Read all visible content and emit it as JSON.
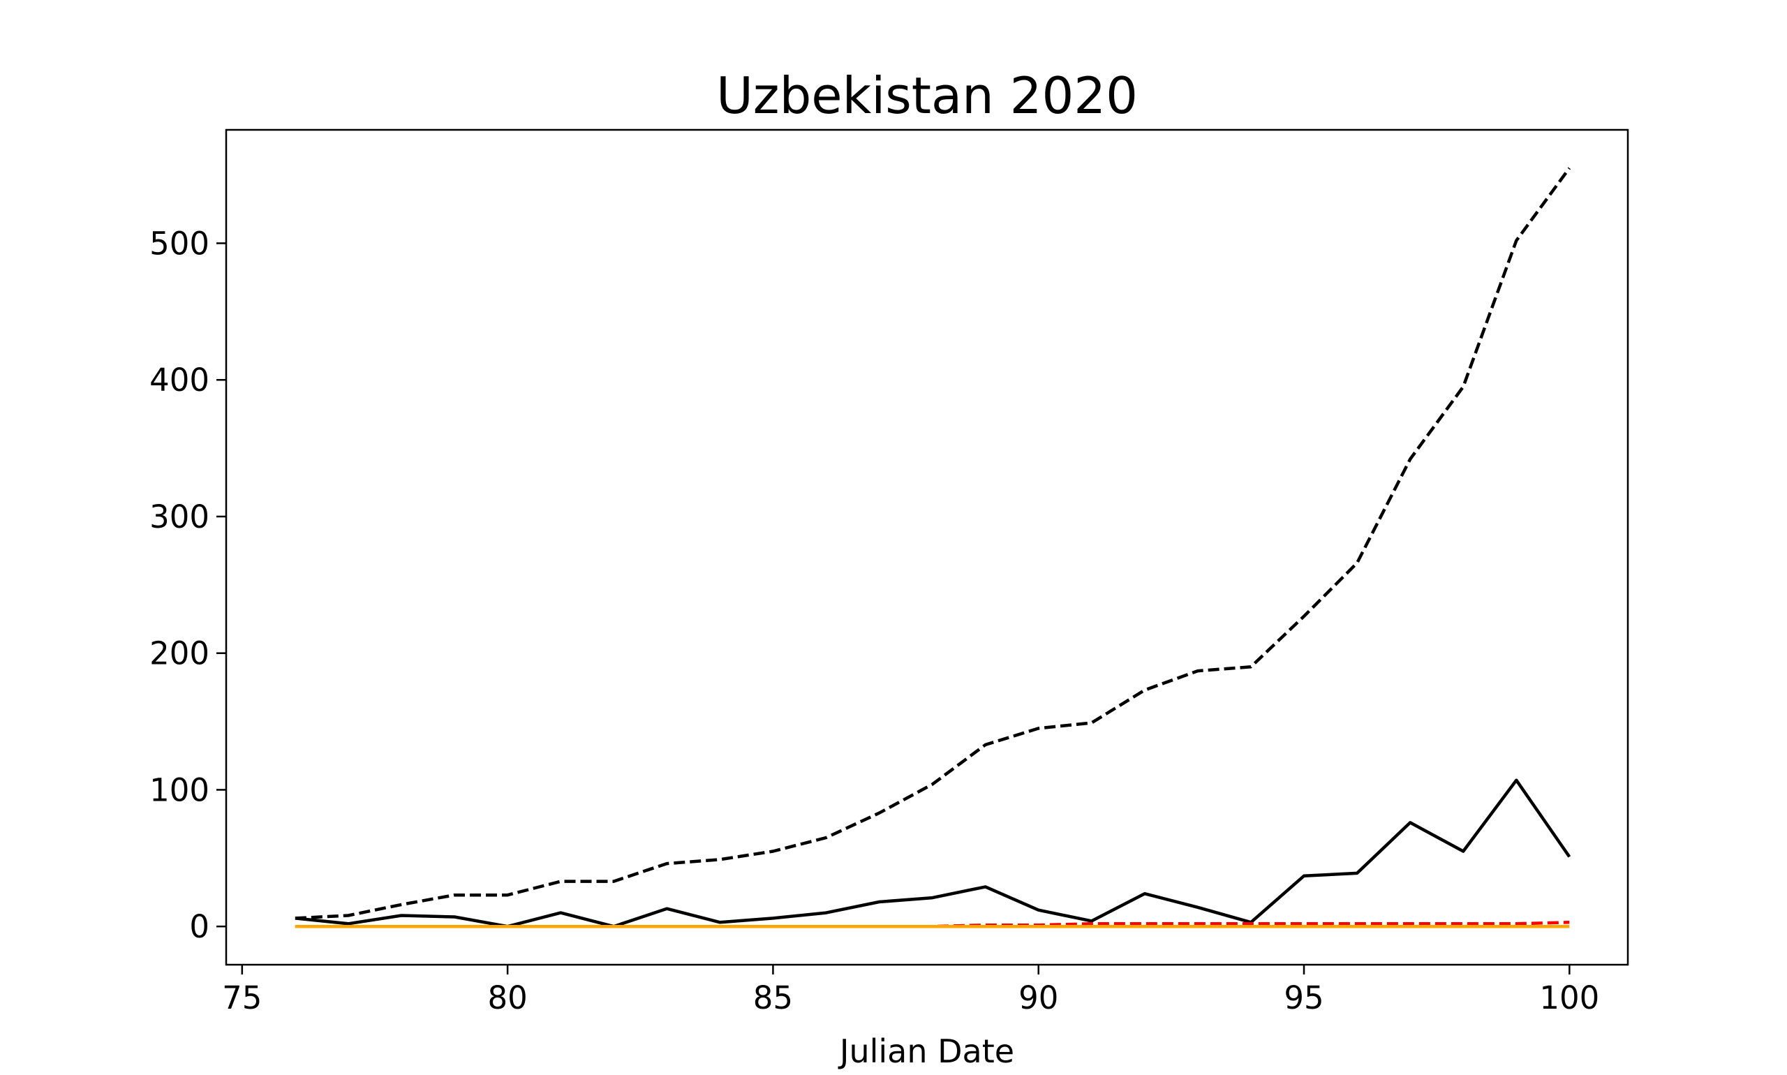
{
  "chart_data": {
    "type": "line",
    "title": "Uzbekistan 2020",
    "xlabel": "Julian Date",
    "ylabel": "",
    "xlim": [
      74.7,
      101.1
    ],
    "ylim": [
      -28,
      583
    ],
    "xticks": [
      75,
      80,
      85,
      90,
      95,
      100
    ],
    "yticks": [
      0,
      100,
      200,
      300,
      400,
      500
    ],
    "grid": false,
    "legend": "none",
    "x": [
      76,
      77,
      78,
      79,
      80,
      81,
      82,
      83,
      84,
      85,
      86,
      87,
      88,
      89,
      90,
      91,
      92,
      93,
      94,
      95,
      96,
      97,
      98,
      99,
      100
    ],
    "series": [
      {
        "color": "#000000",
        "style": "dashed",
        "values": [
          6,
          8,
          16,
          23,
          23,
          33,
          33,
          46,
          49,
          55,
          65,
          83,
          104,
          133,
          145,
          149,
          173,
          187,
          190,
          227,
          266,
          342,
          395,
          502,
          555
        ]
      },
      {
        "color": "#000000",
        "style": "solid",
        "values": [
          6,
          2,
          8,
          7,
          0,
          10,
          0,
          13,
          3,
          6,
          10,
          18,
          21,
          29,
          12,
          4,
          24,
          14,
          3,
          37,
          39,
          76,
          55,
          107,
          51
        ]
      },
      {
        "color": "#ff0000",
        "style": "dashed",
        "values": [
          0,
          0,
          0,
          0,
          0,
          0,
          0,
          0,
          0,
          0,
          0,
          0,
          0,
          1,
          1,
          2,
          2,
          2,
          2,
          2,
          2,
          2,
          2,
          2,
          3
        ]
      },
      {
        "color": "#ffa500",
        "style": "solid",
        "values": [
          0,
          0,
          0,
          0,
          0,
          0,
          0,
          0,
          0,
          0,
          0,
          0,
          0,
          0,
          0,
          0,
          0,
          0,
          0,
          0,
          0,
          0,
          0,
          0,
          0
        ]
      }
    ]
  }
}
